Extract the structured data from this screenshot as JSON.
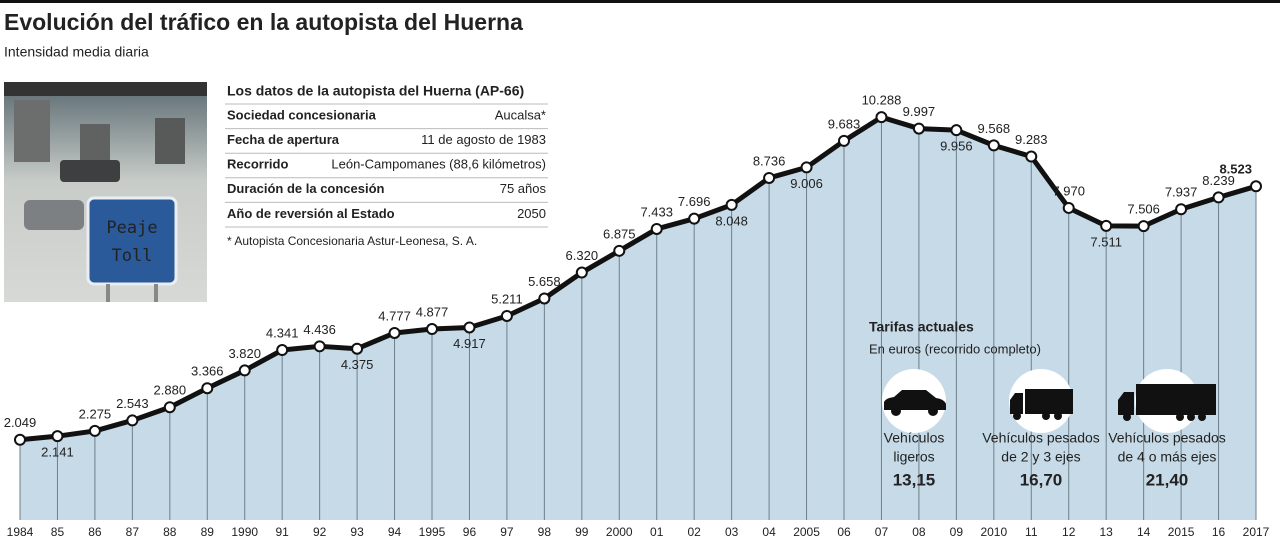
{
  "header": {
    "title": "Evolución del tráfico en la autopista del Huerna",
    "subtitle": "Intensidad media diaria"
  },
  "photo": {
    "sign": [
      "Peaje",
      "Toll"
    ]
  },
  "info_table": {
    "title": "Los datos de la autopista del Huerna (AP-66)",
    "rows": [
      [
        "Sociedad concesionaria",
        "Aucalsa*"
      ],
      [
        "Fecha de apertura",
        "11 de agosto de 1983"
      ],
      [
        "Recorrido",
        "León-Campomanes (88,6 kilómetros)"
      ],
      [
        "Duración de la concesión",
        "75 años"
      ],
      [
        "Año de reversión al Estado",
        "2050"
      ]
    ],
    "footnote": "* Autopista Concesionaria Astur-Leonesa, S. A."
  },
  "tariffs": {
    "title": "Tarifas actuales",
    "subtitle": "En euros (recorrido completo)",
    "items": [
      {
        "label": [
          "Vehículos",
          "ligeros"
        ],
        "price": "13,15"
      },
      {
        "label": [
          "Vehículos pesados",
          "de 2 y 3 ejes"
        ],
        "price": "16,70"
      },
      {
        "label": [
          "Vehículos pesados",
          "de 4 o más ejes"
        ],
        "price": "21,40"
      }
    ]
  },
  "chart_data": {
    "type": "line",
    "categories": [
      "1984",
      "85",
      "86",
      "87",
      "88",
      "89",
      "1990",
      "91",
      "92",
      "93",
      "94",
      "1995",
      "96",
      "97",
      "98",
      "99",
      "2000",
      "01",
      "02",
      "03",
      "04",
      "2005",
      "06",
      "07",
      "08",
      "09",
      "2010",
      "11",
      "12",
      "13",
      "14",
      "2015",
      "16",
      "2017"
    ],
    "values": [
      2049,
      2141,
      2275,
      2543,
      2880,
      3366,
      3820,
      4341,
      4436,
      4375,
      4777,
      4877,
      4917,
      5211,
      5658,
      6320,
      6875,
      7433,
      7696,
      8048,
      8736,
      9006,
      9683,
      10288,
      9997,
      9956,
      9568,
      9283,
      7970,
      7511,
      7506,
      7937,
      8239,
      8523
    ],
    "value_labels": [
      "2.049",
      "2.141",
      "2.275",
      "2.543",
      "2.880",
      "3.366",
      "3.820",
      "4.341",
      "4.436",
      "4.375",
      "4.777",
      "4.877",
      "4.917",
      "5.211",
      "5.658",
      "6.320",
      "6.875",
      "7.433",
      "7.696",
      "8.048",
      "8.736",
      "9.006",
      "9.683",
      "10.288",
      "9.997",
      "9.956",
      "9.568",
      "9.283",
      "7.970",
      "7.511",
      "7.506",
      "7.937",
      "8.239",
      "8.523"
    ],
    "color": "#111111",
    "area_color": "#c6dae7",
    "ylim": [
      0,
      13000
    ]
  }
}
